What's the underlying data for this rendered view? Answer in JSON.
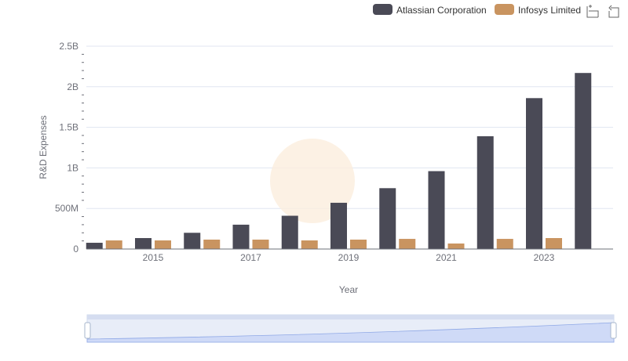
{
  "chart_data": {
    "type": "bar",
    "title": "",
    "xlabel": "Year",
    "ylabel": "R&D Expenses",
    "categories": [
      "2014",
      "2015",
      "2016",
      "2017",
      "2018",
      "2019",
      "2020",
      "2021",
      "2022",
      "2023",
      "2024"
    ],
    "x_tick_labels": [
      "2015",
      "2017",
      "2019",
      "2021",
      "2023"
    ],
    "y_tick_labels": [
      "0",
      "500M",
      "1B",
      "1.5B",
      "2B",
      "2.5B"
    ],
    "ylim": [
      0,
      2500000000
    ],
    "grid": true,
    "legend_position": "top-right",
    "series": [
      {
        "name": "Atlassian Corporation",
        "color": "#4a4a56",
        "values": [
          77000000,
          135000000,
          200000000,
          300000000,
          410000000,
          570000000,
          750000000,
          960000000,
          1390000000,
          1860000000,
          2170000000
        ]
      },
      {
        "name": "Infosys Limited",
        "color": "#c99460",
        "values": [
          106000000,
          106000000,
          116000000,
          116000000,
          106000000,
          116000000,
          125000000,
          68000000,
          125000000,
          135000000,
          null
        ]
      }
    ]
  },
  "toolbox": {
    "zoom_icon": "zoom-select-icon",
    "reset_icon": "zoom-reset-icon"
  }
}
